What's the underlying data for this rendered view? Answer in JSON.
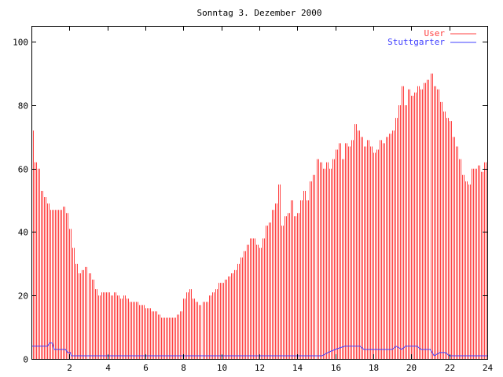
{
  "chart_data": {
    "type": "bar",
    "title": "Sonntag 3. Dezember 2000",
    "xlabel": "",
    "ylabel": "",
    "xlim": [
      0,
      24
    ],
    "ylim": [
      0,
      105
    ],
    "x_ticks": [
      2,
      4,
      6,
      8,
      10,
      12,
      14,
      16,
      18,
      20,
      22,
      24
    ],
    "y_ticks": [
      0,
      20,
      40,
      60,
      80,
      100
    ],
    "legend_position": "top-right",
    "series": [
      {
        "name": "User",
        "style": "impulses",
        "color": "#ff4040",
        "x_step_hours": 0.16667,
        "values": [
          72,
          62,
          60,
          53,
          51,
          49,
          47,
          47,
          47,
          47,
          48,
          46,
          41,
          35,
          30,
          27,
          28,
          29,
          27,
          25,
          22,
          20,
          21,
          21,
          21,
          20,
          21,
          20,
          19,
          20,
          19,
          18,
          18,
          18,
          17,
          17,
          16,
          16,
          15,
          15,
          14,
          13,
          13,
          13,
          13,
          13,
          14,
          15,
          19,
          21,
          22,
          19,
          18,
          17,
          18,
          18,
          20,
          21,
          22,
          24,
          24,
          25,
          26,
          27,
          28,
          30,
          32,
          34,
          36,
          38,
          38,
          36,
          35,
          38,
          42,
          43,
          47,
          49,
          55,
          42,
          45,
          46,
          50,
          45,
          46,
          50,
          53,
          50,
          56,
          58,
          63,
          62,
          60,
          62,
          60,
          63,
          66,
          68,
          63,
          68,
          67,
          69,
          74,
          72,
          70,
          67,
          69,
          67,
          65,
          66,
          69,
          68,
          70,
          71,
          72,
          76,
          80,
          86,
          80,
          85,
          83,
          84,
          86,
          85,
          87,
          88,
          90,
          86,
          85,
          81,
          78,
          76,
          75,
          70,
          67,
          63,
          58,
          56,
          55,
          60,
          60,
          61,
          59,
          62,
          63
        ]
      },
      {
        "name": "Stuttgarter",
        "style": "steps",
        "color": "#4040ff",
        "points": [
          [
            0,
            4
          ],
          [
            0.85,
            4
          ],
          [
            0.95,
            5
          ],
          [
            1.1,
            5
          ],
          [
            1.2,
            3
          ],
          [
            1.8,
            3
          ],
          [
            1.9,
            2
          ],
          [
            2.05,
            2
          ],
          [
            2.1,
            1
          ],
          [
            15.3,
            1
          ],
          [
            15.6,
            2
          ],
          [
            16.0,
            3
          ],
          [
            16.5,
            4
          ],
          [
            17.3,
            4
          ],
          [
            17.5,
            3
          ],
          [
            19.0,
            3
          ],
          [
            19.2,
            4
          ],
          [
            19.5,
            3
          ],
          [
            19.7,
            4
          ],
          [
            20.3,
            4
          ],
          [
            20.5,
            3
          ],
          [
            21.0,
            3
          ],
          [
            21.2,
            1
          ],
          [
            21.5,
            2
          ],
          [
            21.8,
            2
          ],
          [
            22.0,
            1
          ],
          [
            24,
            1
          ]
        ]
      }
    ]
  }
}
